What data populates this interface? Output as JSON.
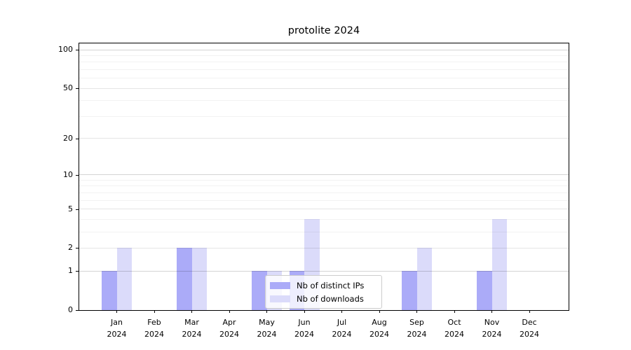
{
  "chart_data": {
    "type": "bar",
    "title": "protolite 2024",
    "categories": [
      "Jan 2024",
      "Feb 2024",
      "Mar 2024",
      "Apr 2024",
      "May 2024",
      "Jun 2024",
      "Jul 2024",
      "Aug 2024",
      "Sep 2024",
      "Oct 2024",
      "Nov 2024",
      "Dec 2024"
    ],
    "series": [
      {
        "name": "Nb of distinct IPs",
        "color": "#ababf8",
        "values": [
          1,
          0,
          2,
          0,
          1,
          1,
          0,
          0,
          1,
          0,
          1,
          0
        ]
      },
      {
        "name": "Nb of downloads",
        "color": "#dbdbfa",
        "values": [
          2,
          0,
          2,
          0,
          1,
          4,
          0,
          0,
          2,
          0,
          4,
          0
        ]
      }
    ],
    "xlabel": "",
    "ylabel": "",
    "yscale": "log1p",
    "ylim": [
      0,
      112
    ],
    "yticks": [
      0,
      1,
      2,
      5,
      10,
      20,
      50,
      100
    ],
    "decade_ticks": [
      1,
      10,
      100
    ],
    "minor_gridlines": [
      3,
      4,
      6,
      7,
      8,
      9,
      30,
      40,
      60,
      70,
      80,
      90
    ],
    "grid": true,
    "legend_position": "lower center"
  },
  "style": {
    "background": "#ffffff",
    "spine_color": "#000000",
    "grid_decade_color": "rgba(0,0,0,0.17)",
    "grid_major_color": "rgba(0,0,0,0.10)",
    "grid_minor_color": "rgba(0,0,0,0.05)"
  }
}
